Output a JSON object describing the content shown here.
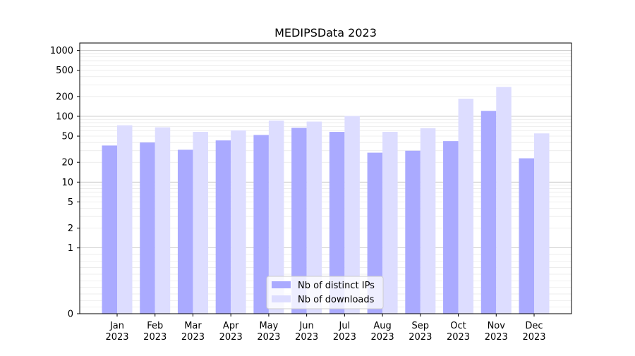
{
  "chart_data": {
    "type": "bar",
    "title": "MEDIPSData 2023",
    "xlabel": "",
    "ylabel": "",
    "yscale": "symlog",
    "ylim": [
      0,
      1300
    ],
    "yticks": [
      0,
      1,
      2,
      5,
      10,
      20,
      50,
      100,
      200,
      500,
      1000
    ],
    "grid": true,
    "legend_position": "bottom-center",
    "categories": [
      [
        "Jan",
        "2023"
      ],
      [
        "Feb",
        "2023"
      ],
      [
        "Mar",
        "2023"
      ],
      [
        "Apr",
        "2023"
      ],
      [
        "May",
        "2023"
      ],
      [
        "Jun",
        "2023"
      ],
      [
        "Jul",
        "2023"
      ],
      [
        "Aug",
        "2023"
      ],
      [
        "Sep",
        "2023"
      ],
      [
        "Oct",
        "2023"
      ],
      [
        "Nov",
        "2023"
      ],
      [
        "Dec",
        "2023"
      ]
    ],
    "series": [
      {
        "name": "Nb of distinct IPs",
        "color": "#aaaaff",
        "values": [
          36,
          40,
          31,
          43,
          52,
          67,
          58,
          28,
          30,
          42,
          121,
          23
        ]
      },
      {
        "name": "Nb of downloads",
        "color": "#ddddff",
        "values": [
          73,
          68,
          58,
          61,
          86,
          83,
          101,
          58,
          66,
          185,
          280,
          55
        ]
      }
    ]
  }
}
